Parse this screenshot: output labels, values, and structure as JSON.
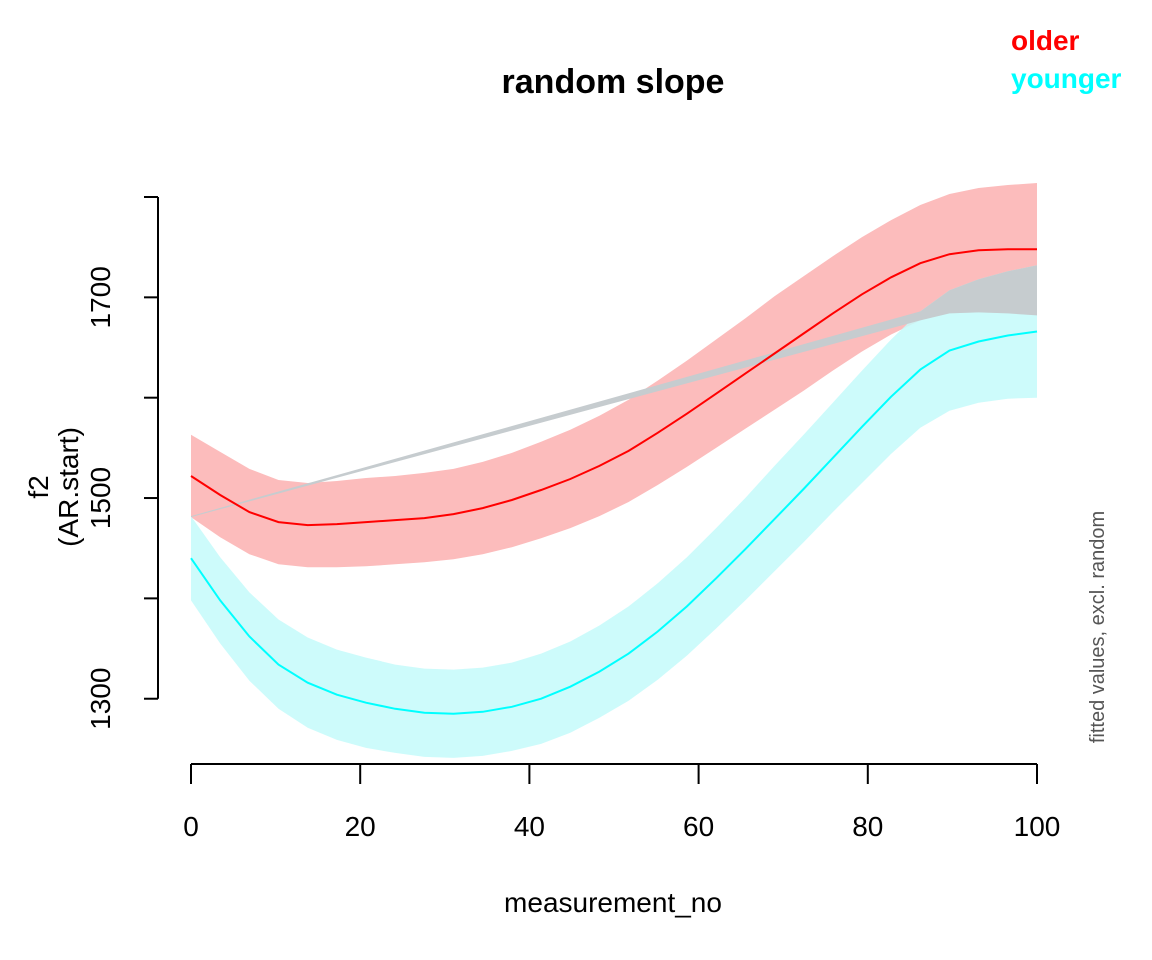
{
  "chart_data": {
    "type": "line",
    "title": "random slope",
    "xlabel": "measurement_no",
    "ylabel_lines": [
      "f2",
      "(AR.start)"
    ],
    "side_note": "fitted values, excl. random",
    "xlim": [
      0,
      100
    ],
    "ylim": [
      1220,
      1800
    ],
    "x_ticks": [
      0,
      20,
      40,
      60,
      80,
      100
    ],
    "y_ticks": [
      1300,
      1400,
      1500,
      1600,
      1700
    ],
    "y_tick_labels": [
      "1300",
      "",
      "1500",
      "",
      "1700"
    ],
    "axis_top": 1800,
    "legend_position": "top-right",
    "grid": false,
    "x": [
      0,
      3.45,
      6.9,
      10.34,
      13.79,
      17.24,
      20.69,
      24.14,
      27.59,
      31.03,
      34.48,
      37.93,
      41.38,
      44.83,
      48.28,
      51.72,
      55.17,
      58.62,
      62.07,
      65.52,
      68.97,
      72.41,
      75.86,
      79.31,
      82.76,
      86.21,
      89.66,
      93.1,
      96.55,
      100
    ],
    "series": [
      {
        "name": "older",
        "color": "#ff0000",
        "band_color": "#fcbcbc",
        "fit": [
          1522,
          1503,
          1486,
          1476,
          1473,
          1474,
          1476,
          1478,
          1480,
          1484,
          1490,
          1498,
          1508,
          1519,
          1532,
          1547,
          1565,
          1584,
          1604,
          1624,
          1644,
          1664,
          1684,
          1703,
          1720,
          1734,
          1743,
          1747,
          1748,
          1748
        ],
        "upper": [
          1563,
          1546,
          1529,
          1518,
          1515,
          1517,
          1520,
          1522,
          1525,
          1529,
          1536,
          1545,
          1556,
          1568,
          1582,
          1598,
          1617,
          1637,
          1658,
          1679,
          1701,
          1721,
          1741,
          1760,
          1777,
          1792,
          1803,
          1809,
          1812,
          1814
        ],
        "lower": [
          1481,
          1461,
          1444,
          1434,
          1431,
          1431,
          1432,
          1434,
          1436,
          1439,
          1444,
          1451,
          1460,
          1470,
          1482,
          1496,
          1513,
          1531,
          1550,
          1569,
          1588,
          1607,
          1627,
          1646,
          1663,
          1677,
          1684,
          1685,
          1684,
          1682
        ]
      },
      {
        "name": "younger",
        "color": "#00ffff",
        "band_color": "#c4fafa",
        "fit": [
          1440,
          1398,
          1362,
          1334,
          1316,
          1304,
          1296,
          1290,
          1286,
          1285,
          1287,
          1292,
          1300,
          1312,
          1327,
          1345,
          1367,
          1392,
          1420,
          1449,
          1479,
          1509,
          1540,
          1571,
          1601,
          1628,
          1647,
          1656,
          1662,
          1666
        ],
        "upper": [
          1482,
          1441,
          1406,
          1379,
          1361,
          1349,
          1341,
          1334,
          1330,
          1329,
          1331,
          1336,
          1345,
          1357,
          1373,
          1392,
          1415,
          1441,
          1470,
          1500,
          1532,
          1563,
          1595,
          1627,
          1658,
          1686,
          1707,
          1718,
          1726,
          1732
        ],
        "lower": [
          1398,
          1355,
          1318,
          1290,
          1271,
          1259,
          1251,
          1246,
          1242,
          1241,
          1243,
          1248,
          1255,
          1266,
          1281,
          1298,
          1319,
          1343,
          1370,
          1398,
          1427,
          1456,
          1486,
          1515,
          1544,
          1570,
          1587,
          1595,
          1599,
          1600
        ]
      }
    ]
  }
}
